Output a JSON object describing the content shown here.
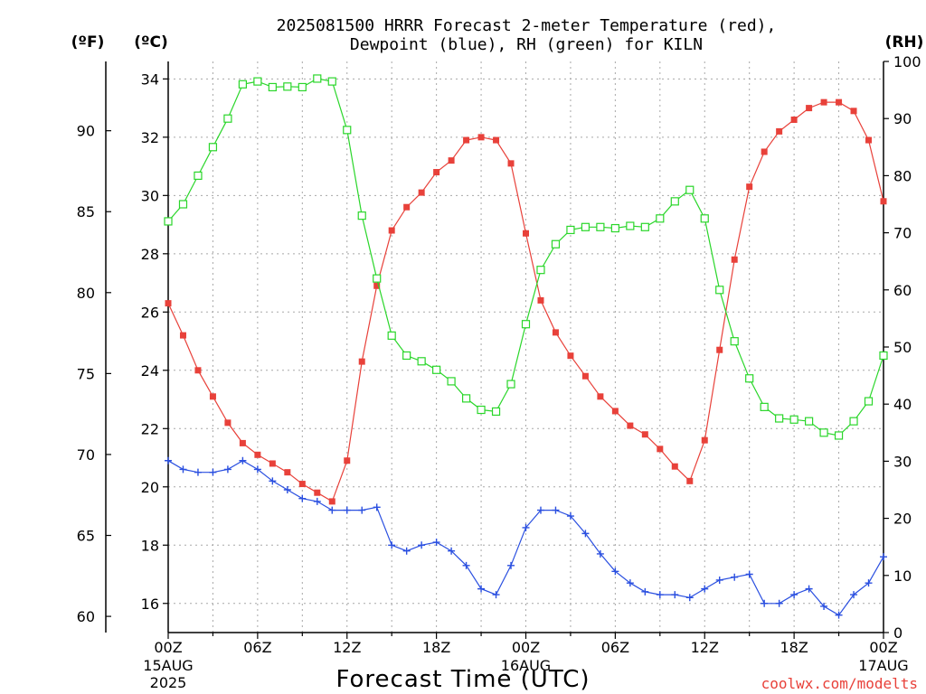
{
  "header": {
    "title_line1": "2025081500 HRRR Forecast 2-meter Temperature (red),",
    "title_line2": "Dewpoint (blue), RH (green) for KILN"
  },
  "watermark": "coolwx.com/modelts",
  "colors": {
    "temperature": "#e8413a",
    "dewpoint": "#2a4fe0",
    "rh": "#2ad62a",
    "grid": "#a8a8a8"
  },
  "chart_data": {
    "type": "line",
    "title": "2025081500 HRRR Forecast 2-meter Temperature (red), Dewpoint (blue), RH (green) for KILN",
    "xlabel": "Forecast Time (UTC)",
    "x_hours_from_2025081500": [
      0,
      1,
      2,
      3,
      4,
      5,
      6,
      7,
      8,
      9,
      10,
      11,
      12,
      13,
      14,
      15,
      16,
      17,
      18,
      19,
      20,
      21,
      22,
      23,
      24,
      25,
      26,
      27,
      28,
      29,
      30,
      31,
      32,
      33,
      34,
      35,
      36,
      37,
      38,
      39,
      40,
      41,
      42,
      43,
      44,
      45,
      46,
      47,
      48
    ],
    "x_range_hours": [
      0,
      48
    ],
    "x_ticks": [
      {
        "hour": 0,
        "label": "00Z",
        "date_line": "15AUG",
        "year_line": "2025"
      },
      {
        "hour": 6,
        "label": "06Z"
      },
      {
        "hour": 12,
        "label": "12Z"
      },
      {
        "hour": 18,
        "label": "18Z"
      },
      {
        "hour": 24,
        "label": "00Z",
        "date_line": "16AUG"
      },
      {
        "hour": 30,
        "label": "06Z"
      },
      {
        "hour": 36,
        "label": "12Z"
      },
      {
        "hour": 42,
        "label": "18Z"
      },
      {
        "hour": 48,
        "label": "00Z",
        "date_line": "17AUG"
      }
    ],
    "axes": {
      "left_c": {
        "unit_label": "(ºC)",
        "range": [
          15,
          34.6
        ],
        "ticks": [
          16,
          18,
          20,
          22,
          24,
          26,
          28,
          30,
          32,
          34
        ]
      },
      "left_f": {
        "unit_label": "(ºF)",
        "range": [
          59,
          94.28
        ],
        "ticks": [
          60,
          65,
          70,
          75,
          80,
          85,
          90
        ]
      },
      "right_rh": {
        "unit_label": "(RH)",
        "range": [
          0,
          100
        ],
        "ticks": [
          0,
          10,
          20,
          30,
          40,
          50,
          60,
          70,
          80,
          90,
          100
        ]
      }
    },
    "grid": true,
    "series": [
      {
        "name": "2-meter Temperature",
        "axis": "left_c",
        "marker": "filled-square",
        "values": [
          26.3,
          25.2,
          24.0,
          23.1,
          22.2,
          21.5,
          21.1,
          20.8,
          20.5,
          20.1,
          19.8,
          19.5,
          20.9,
          24.3,
          26.9,
          28.8,
          29.6,
          30.1,
          30.8,
          31.2,
          31.9,
          32.0,
          31.9,
          31.1,
          28.7,
          26.4,
          25.3,
          24.5,
          23.8,
          23.1,
          22.6,
          22.1,
          21.8,
          21.3,
          20.7,
          20.2,
          21.6,
          24.7,
          27.8,
          30.3,
          31.5,
          32.2,
          32.6,
          33.0,
          33.2,
          33.2,
          32.9,
          31.9,
          29.8
        ]
      },
      {
        "name": "Dewpoint",
        "axis": "left_c",
        "marker": "plus",
        "values": [
          20.9,
          20.6,
          20.5,
          20.5,
          20.6,
          20.9,
          20.6,
          20.2,
          19.9,
          19.6,
          19.5,
          19.2,
          19.2,
          19.2,
          19.3,
          18.0,
          17.8,
          18.0,
          18.1,
          17.8,
          17.3,
          16.5,
          16.3,
          17.3,
          18.6,
          19.2,
          19.2,
          19.0,
          18.4,
          17.7,
          17.1,
          16.7,
          16.4,
          16.3,
          16.3,
          16.2,
          16.5,
          16.8,
          16.9,
          17.0,
          16.0,
          16.0,
          16.3,
          16.5,
          15.9,
          15.6,
          16.3,
          16.7,
          17.6
        ]
      },
      {
        "name": "RH",
        "axis": "right_rh",
        "marker": "open-square",
        "values": [
          72,
          75,
          80,
          85,
          90,
          96,
          96.5,
          95.5,
          95.6,
          95.5,
          97,
          96.5,
          88,
          73,
          62,
          52,
          48.5,
          47.5,
          46,
          44,
          41,
          39,
          38.7,
          43.5,
          54,
          63.5,
          68,
          70.5,
          71,
          71,
          70.8,
          71.2,
          71,
          72.5,
          75.5,
          77.5,
          72.5,
          60,
          51,
          44.5,
          39.5,
          37.5,
          37.3,
          37,
          35,
          34.5,
          37,
          40.5,
          48.5
        ]
      }
    ]
  }
}
